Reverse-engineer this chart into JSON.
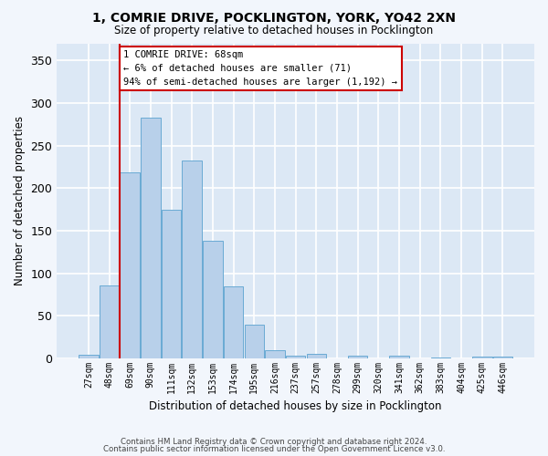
{
  "title1": "1, COMRIE DRIVE, POCKLINGTON, YORK, YO42 2XN",
  "title2": "Size of property relative to detached houses in Pocklington",
  "xlabel": "Distribution of detached houses by size in Pocklington",
  "ylabel": "Number of detached properties",
  "bar_color": "#b8d0ea",
  "bar_edge_color": "#6aaad4",
  "background_color": "#dce8f5",
  "grid_color": "#ffffff",
  "annotation_line_color": "#cc0000",
  "annotation_box_color": "#cc0000",
  "annotation_text": "1 COMRIE DRIVE: 68sqm\n← 6% of detached houses are smaller (71)\n94% of semi-detached houses are larger (1,192) →",
  "marker_bar_index": 2,
  "categories": [
    "27sqm",
    "48sqm",
    "69sqm",
    "90sqm",
    "111sqm",
    "132sqm",
    "153sqm",
    "174sqm",
    "195sqm",
    "216sqm",
    "237sqm",
    "257sqm",
    "278sqm",
    "299sqm",
    "320sqm",
    "341sqm",
    "362sqm",
    "383sqm",
    "404sqm",
    "425sqm",
    "446sqm"
  ],
  "values": [
    4,
    86,
    218,
    283,
    175,
    232,
    138,
    85,
    40,
    10,
    3,
    5,
    0,
    3,
    0,
    3,
    0,
    1,
    0,
    2,
    2
  ],
  "ylim": [
    0,
    370
  ],
  "yticks": [
    0,
    50,
    100,
    150,
    200,
    250,
    300,
    350
  ],
  "footer1": "Contains HM Land Registry data © Crown copyright and database right 2024.",
  "footer2": "Contains public sector information licensed under the Open Government Licence v3.0."
}
